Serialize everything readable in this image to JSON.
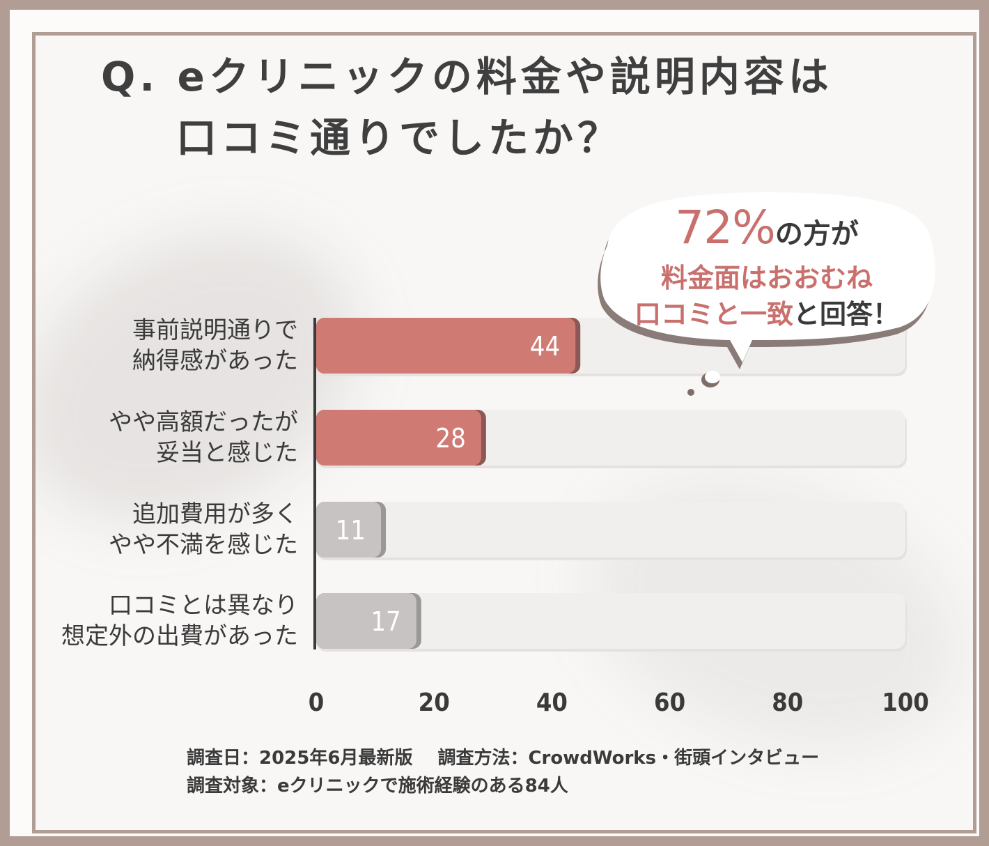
{
  "title": {
    "line1": "Q. eクリニックの料金や説明内容は",
    "line2": "口コミ通りでしたか？"
  },
  "callout": {
    "percent": "72%",
    "line1_rest": "の方が",
    "line2": "料金面はおおむね",
    "line3_red": "口コミと一致",
    "line3_rest": "と回答！"
  },
  "chart_data": {
    "type": "bar",
    "orientation": "horizontal",
    "categories": [
      [
        "事前説明通りで",
        "納得感があった"
      ],
      [
        "やや高額だったが",
        "妥当と感じた"
      ],
      [
        "追加費用が多く",
        "やや不満を感じた"
      ],
      [
        "口コミとは異なり",
        "想定外の出費があった"
      ]
    ],
    "values": [
      44,
      28,
      11,
      17
    ],
    "value_labels": [
      "44",
      "28",
      "11",
      "17"
    ],
    "xlim": [
      0,
      100
    ],
    "xticks": [
      "0",
      "20",
      "40",
      "60",
      "80",
      "100"
    ],
    "highlight": [
      true,
      true,
      false,
      false
    ],
    "colors": {
      "highlight": "#d07a74",
      "normal": "#c6c3c2",
      "track": "#f1efee",
      "axis": "#3a3a3a"
    },
    "grid": false,
    "legend": "none"
  },
  "footer": {
    "date": "調査日：2025年6月最新版",
    "method": "調査方法：CrowdWorks・街頭インタビュー",
    "target": "調査対象：eクリニックで施術経験のある84人"
  }
}
